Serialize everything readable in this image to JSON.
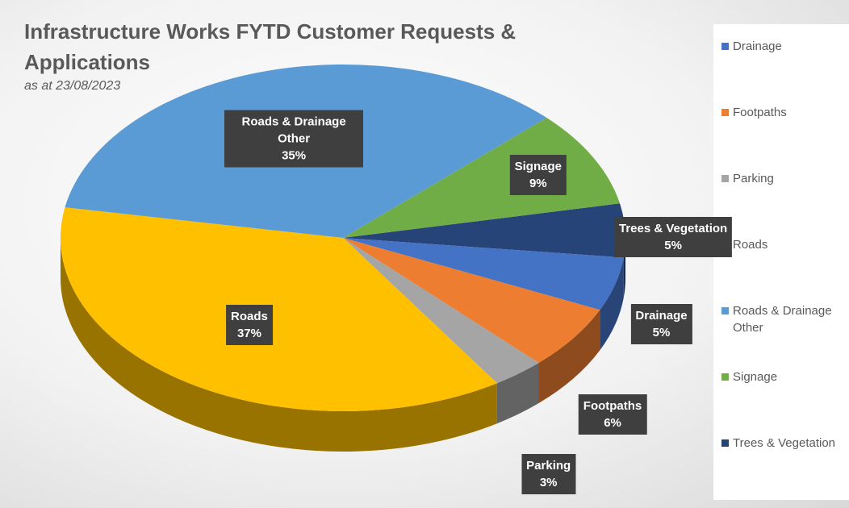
{
  "chart_data": {
    "type": "pie",
    "title": "Infrastructure Works FYTD Customer Requests & Applications",
    "subtitle": "as at 23/08/2023",
    "categories": [
      "Drainage",
      "Footpaths",
      "Parking",
      "Roads",
      "Roads & Drainage Other",
      "Signage",
      "Trees & Vegetation"
    ],
    "values": [
      5,
      6,
      3,
      37,
      35,
      9,
      5
    ],
    "value_labels": [
      "5%",
      "6%",
      "3%",
      "37%",
      "35%",
      "9%",
      "5%"
    ],
    "colors": [
      "#4472c4",
      "#ed7d31",
      "#a5a5a5",
      "#ffc000",
      "#5b9bd5",
      "#70ad47",
      "#264478"
    ],
    "legend": "right"
  }
}
